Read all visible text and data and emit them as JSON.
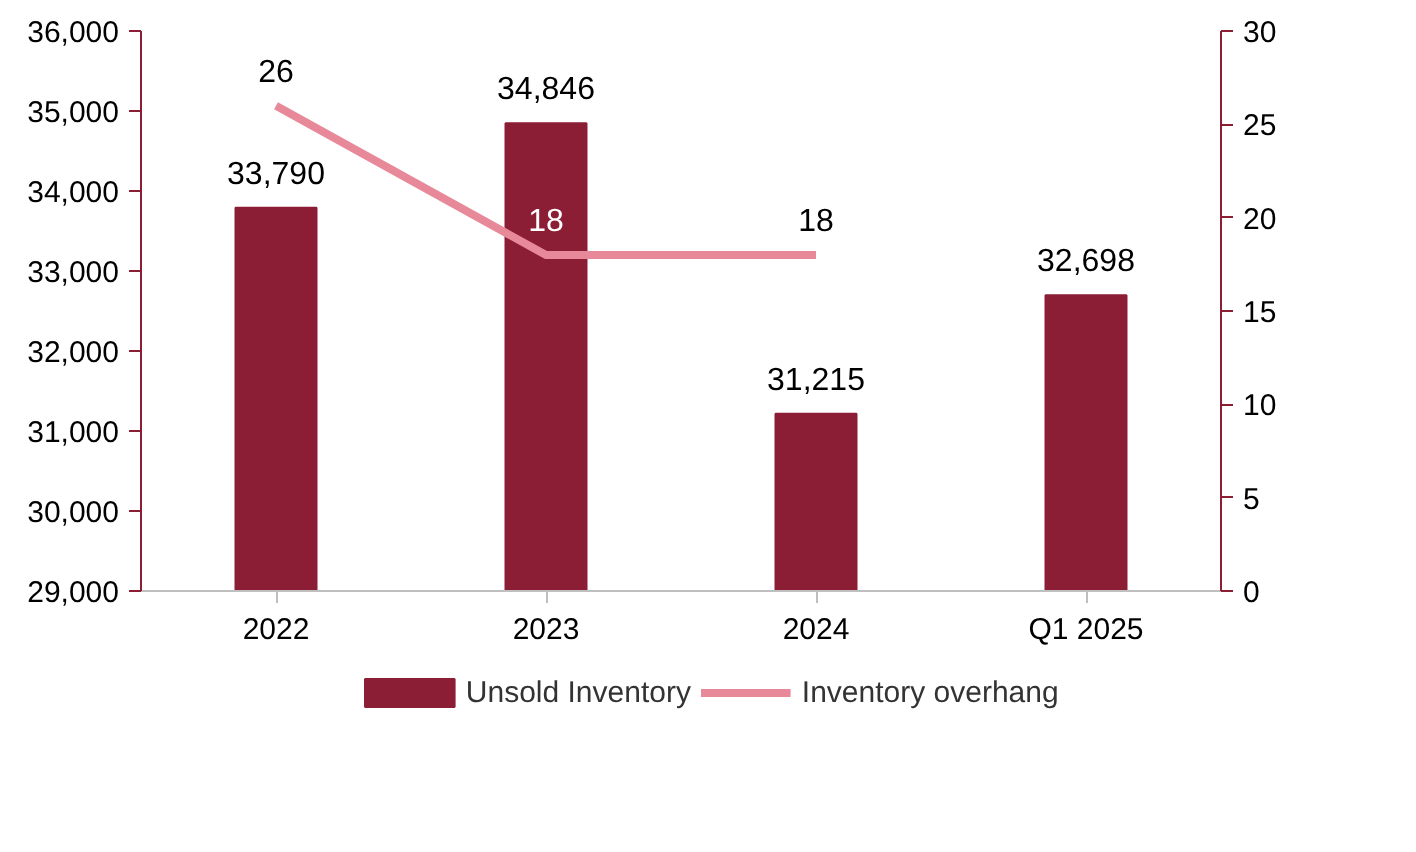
{
  "chart_data": {
    "type": "bar",
    "categories": [
      "2022",
      "2023",
      "2024",
      "Q1 2025"
    ],
    "series": [
      {
        "name": "Unsold Inventory",
        "color": "#8b1e35",
        "values": [
          33790,
          34846,
          31215,
          32698
        ],
        "value_labels": [
          "33,790",
          "34,846",
          "31,215",
          "32,698"
        ]
      },
      {
        "name": "Inventory overhang",
        "type": "line",
        "axis": "y2",
        "color": "#e8899a",
        "values": [
          26,
          18,
          18,
          null
        ],
        "value_labels": [
          "26",
          "18",
          "18",
          null
        ]
      }
    ],
    "ylim": [
      29000,
      36000
    ],
    "yticks": [
      {
        "value": 29000,
        "label": "29,000"
      },
      {
        "value": 30000,
        "label": "30,000"
      },
      {
        "value": 31000,
        "label": "31,000"
      },
      {
        "value": 32000,
        "label": "32,000"
      },
      {
        "value": 33000,
        "label": "33,000"
      },
      {
        "value": 34000,
        "label": "34,000"
      },
      {
        "value": 35000,
        "label": "35,000"
      },
      {
        "value": 36000,
        "label": "36,000"
      }
    ],
    "y2lim": [
      0,
      30
    ],
    "y2ticks": [
      0,
      5,
      10,
      15,
      20,
      25,
      30
    ],
    "grid": false,
    "legend": "bottom",
    "marker": "none",
    "line_style": "solid"
  }
}
